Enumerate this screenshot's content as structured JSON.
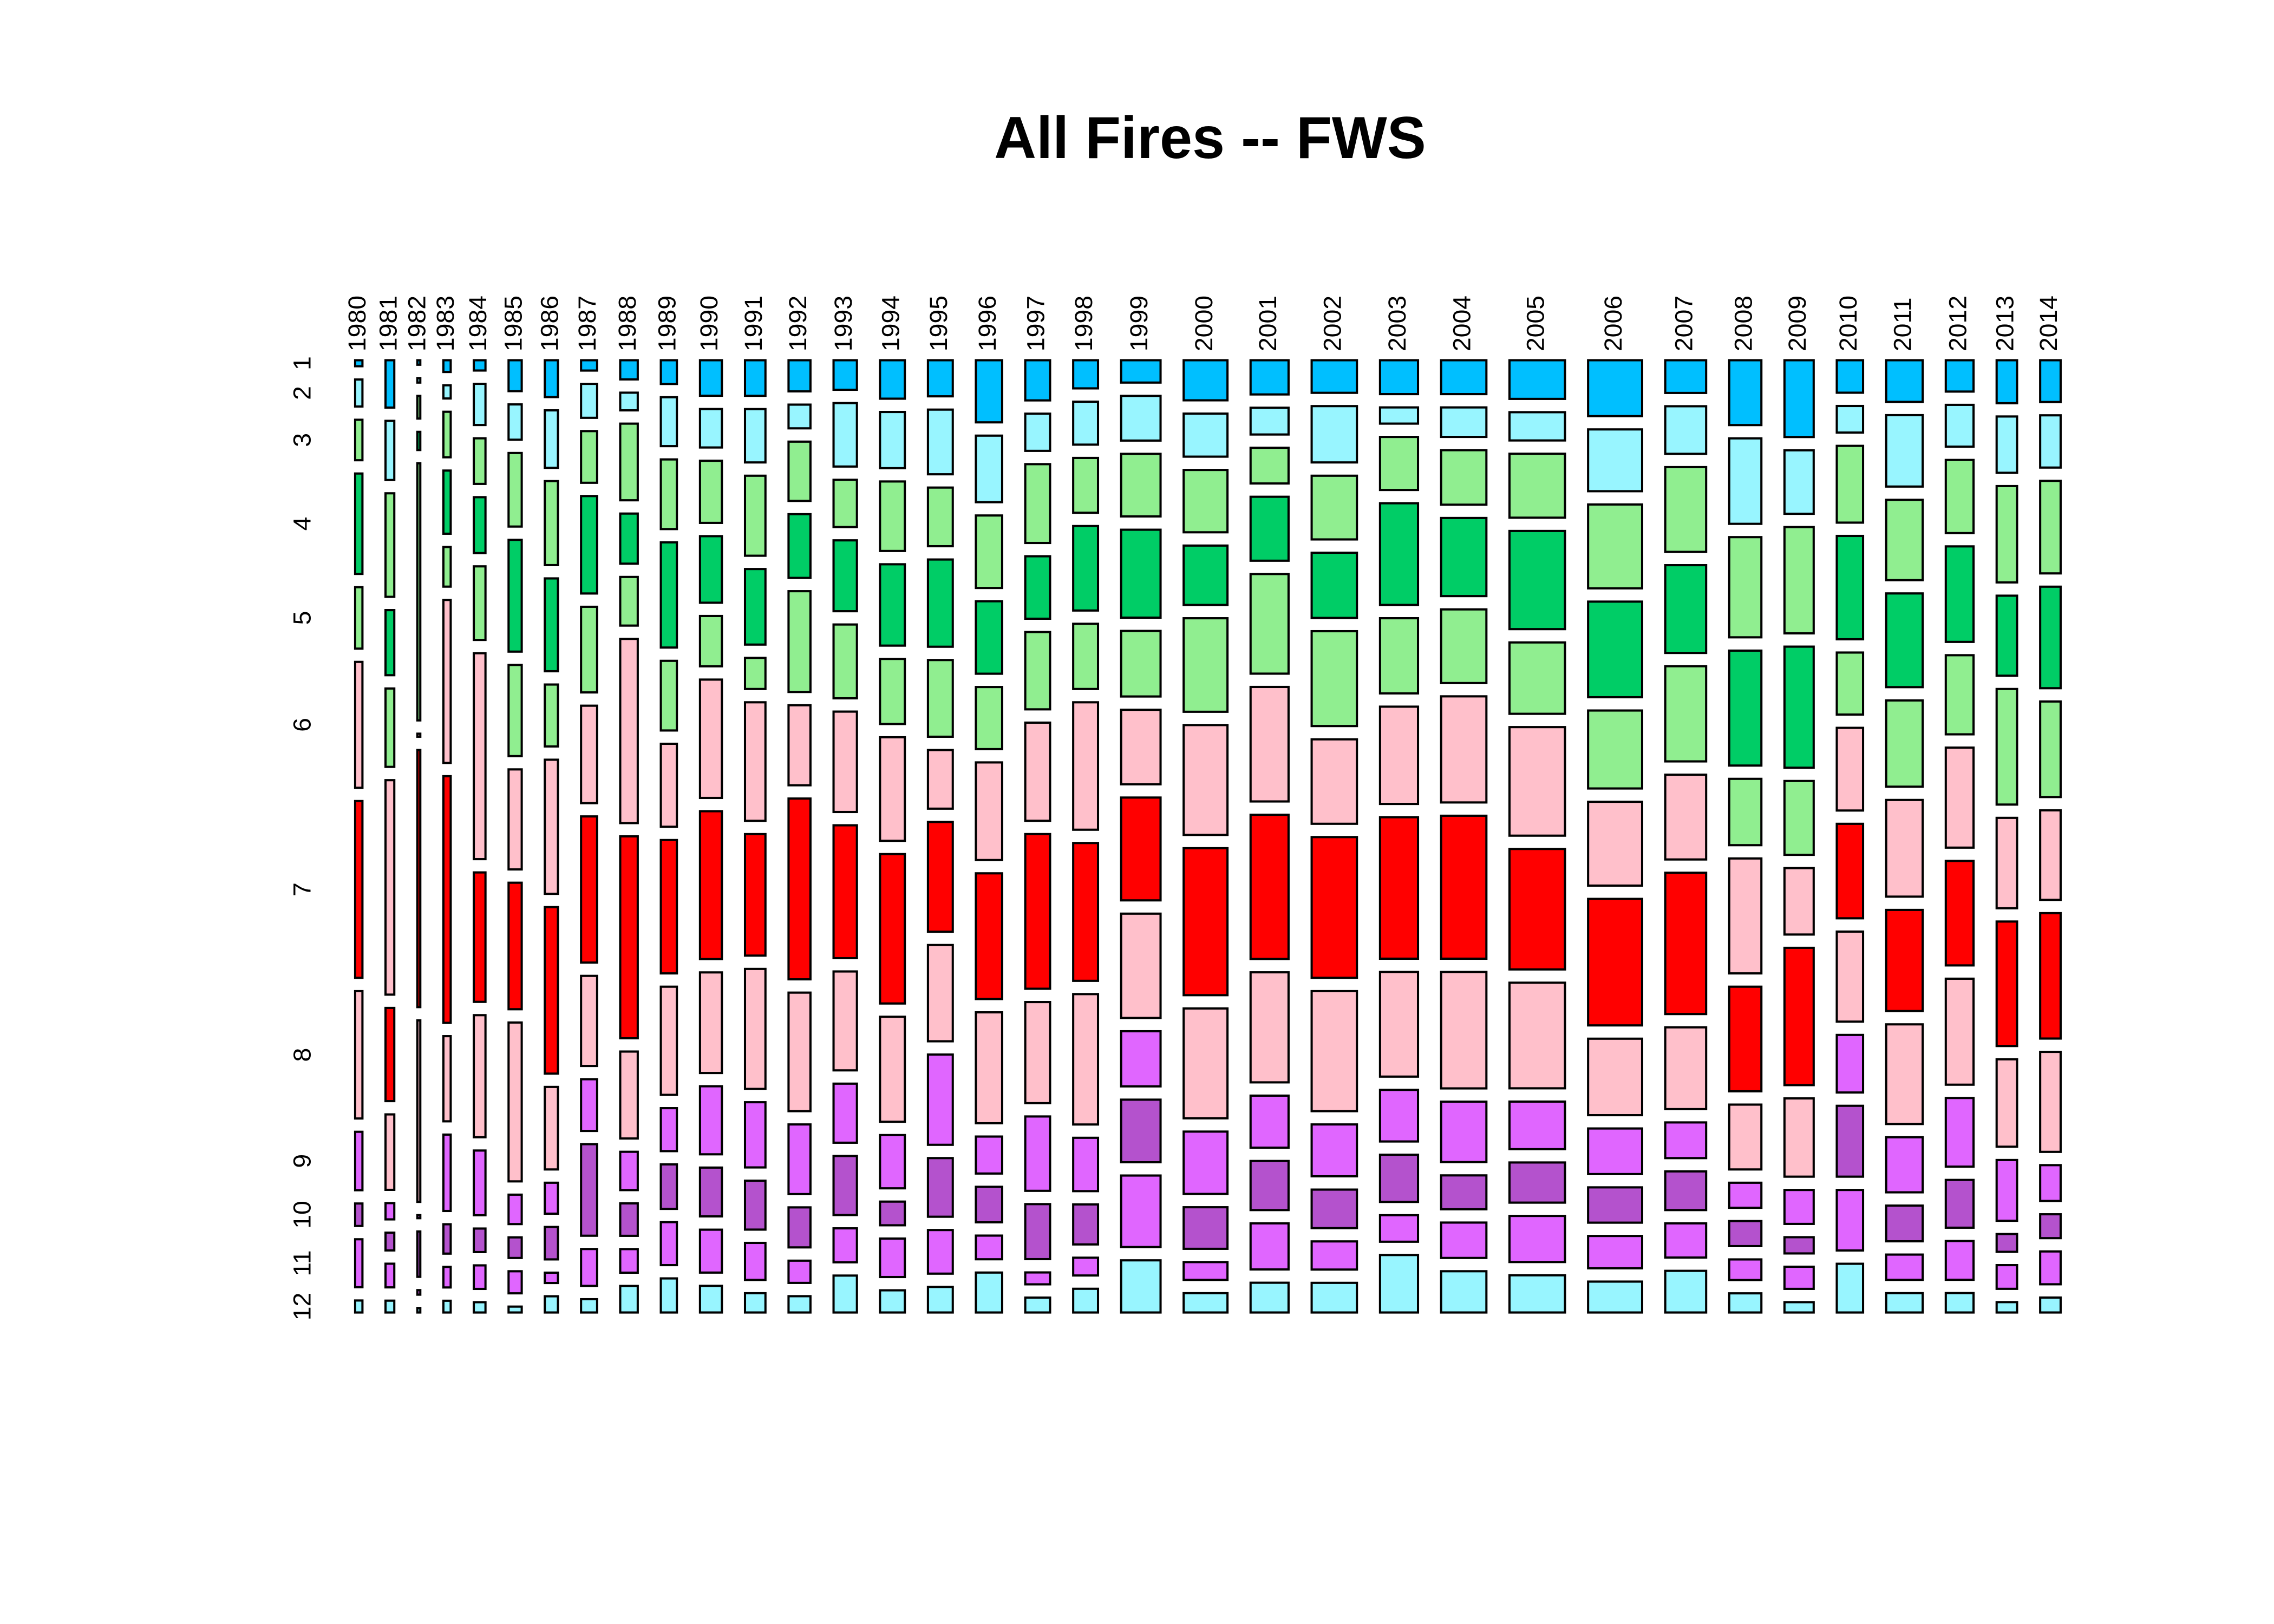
{
  "chart_data": {
    "type": "mosaic",
    "title": "All Fires -- FWS",
    "categories": [
      "1980",
      "1981",
      "1982",
      "1983",
      "1984",
      "1985",
      "1986",
      "1987",
      "1988",
      "1989",
      "1990",
      "1991",
      "1992",
      "1993",
      "1994",
      "1995",
      "1996",
      "1997",
      "1998",
      "1999",
      "2000",
      "2001",
      "2002",
      "2003",
      "2004",
      "2005",
      "2006",
      "2007",
      "2008",
      "2009",
      "2010",
      "2011",
      "2012",
      "2013",
      "2014"
    ],
    "totals": [
      5,
      6,
      2,
      5,
      8,
      9,
      9,
      11,
      12,
      11,
      15,
      14,
      15,
      16,
      17,
      17,
      18,
      17,
      17,
      27,
      30,
      26,
      31,
      26,
      31,
      38,
      37,
      28,
      22,
      20,
      18,
      25,
      19,
      14,
      14
    ],
    "series": [
      {
        "name": "1",
        "color": "#00BFFF",
        "values": [
          4,
          32,
          3,
          8,
          7,
          21,
          25,
          7,
          13,
          16,
          24,
          24,
          21,
          20,
          26,
          24,
          42,
          27,
          19,
          15,
          27,
          23,
          22,
          23,
          23,
          26,
          38,
          22,
          44,
          52,
          22,
          28,
          21,
          29,
          28
        ]
      },
      {
        "name": "2",
        "color": "#98F5FF",
        "values": [
          18,
          40,
          3,
          9,
          28,
          24,
          39,
          23,
          12,
          33,
          26,
          36,
          16,
          43,
          38,
          43,
          45,
          25,
          29,
          30,
          29,
          18,
          38,
          11,
          20,
          19,
          42,
          32,
          58,
          43,
          18,
          48,
          28,
          38,
          35
        ]
      },
      {
        "name": "3",
        "color": "#90EE90",
        "values": [
          27,
          70,
          15,
          31,
          31,
          50,
          57,
          35,
          52,
          47,
          42,
          54,
          40,
          32,
          47,
          39,
          49,
          53,
          37,
          42,
          42,
          24,
          43,
          36,
          37,
          43,
          57,
          57,
          68,
          72,
          52,
          54,
          49,
          65,
          62
        ]
      },
      {
        "name": "4",
        "color": "#00CD66",
        "values": [
          67,
          44,
          12,
          43,
          38,
          76,
          63,
          66,
          34,
          71,
          45,
          51,
          43,
          48,
          55,
          58,
          49,
          42,
          57,
          59,
          40,
          43,
          44,
          69,
          53,
          66,
          65,
          59,
          78,
          82,
          70,
          63,
          64,
          54,
          68
        ]
      },
      {
        "name": "5",
        "color": "#90EE90",
        "values": [
          41,
          53,
          170,
          27,
          50,
          62,
          42,
          58,
          33,
          47,
          34,
          21,
          68,
          50,
          44,
          51,
          42,
          52,
          44,
          44,
          63,
          67,
          64,
          51,
          50,
          48,
          53,
          64,
          45,
          50,
          42,
          58,
          53,
          78,
          64
        ]
      },
      {
        "name": "6",
        "color": "#FFC0CB",
        "values": [
          84,
          145,
          2,
          111,
          140,
          68,
          91,
          66,
          125,
          56,
          80,
          80,
          54,
          68,
          70,
          39,
          66,
          66,
          86,
          50,
          74,
          77,
          57,
          66,
          72,
          73,
          57,
          57,
          78,
          45,
          56,
          65,
          67,
          61,
          60
        ]
      },
      {
        "name": "7",
        "color": "#FF0000",
        "values": [
          118,
          63,
          170,
          168,
          88,
          86,
          113,
          99,
          137,
          90,
          100,
          82,
          122,
          90,
          101,
          73,
          85,
          104,
          93,
          69,
          99,
          97,
          95,
          96,
          97,
          81,
          86,
          95,
          71,
          93,
          64,
          68,
          70,
          84,
          84
        ]
      },
      {
        "name": "8",
        "color": "#FFC0CB",
        "values": [
          85,
          51,
          120,
          58,
          83,
          108,
          56,
          61,
          59,
          73,
          68,
          81,
          80,
          67,
          71,
          64,
          75,
          68,
          88,
          70,
          74,
          74,
          81,
          71,
          79,
          71,
          52,
          55,
          44,
          53,
          61,
          67,
          71,
          59,
          67
        ]
      },
      {
        "name": "9",
        "color": "#E066FF",
        "values": [
          39,
          11,
          2,
          52,
          44,
          20,
          21,
          35,
          26,
          29,
          46,
          44,
          47,
          40,
          36,
          60,
          25,
          50,
          36,
          37,
          42,
          35,
          35,
          35,
          41,
          32,
          31,
          24,
          17,
          23,
          39,
          37,
          46,
          41,
          24
        ]
      },
      {
        "name": "10",
        "color": "#B452CD",
        "values": [
          15,
          12,
          30,
          20,
          16,
          14,
          22,
          62,
          22,
          30,
          33,
          33,
          27,
          40,
          16,
          39,
          24,
          37,
          27,
          42,
          28,
          33,
          26,
          32,
          23,
          27,
          24,
          26,
          17,
          11,
          48,
          24,
          32,
          12,
          16
        ]
      },
      {
        "name": "11",
        "color": "#E066FF",
        "values": [
          32,
          16,
          3,
          14,
          16,
          15,
          7,
          25,
          16,
          29,
          29,
          25,
          15,
          23,
          26,
          29,
          16,
          8,
          12,
          48,
          12,
          31,
          19,
          18,
          24,
          31,
          22,
          23,
          14,
          15,
          41,
          17,
          26,
          16,
          22
        ]
      },
      {
        "name": "12",
        "color": "#98F5FF",
        "values": [
          8,
          8,
          3,
          8,
          7,
          4,
          11,
          9,
          18,
          23,
          18,
          13,
          11,
          25,
          15,
          17,
          27,
          10,
          16,
          35,
          13,
          20,
          20,
          39,
          28,
          25,
          21,
          28,
          13,
          7,
          33,
          13,
          13,
          7,
          10
        ]
      }
    ]
  }
}
